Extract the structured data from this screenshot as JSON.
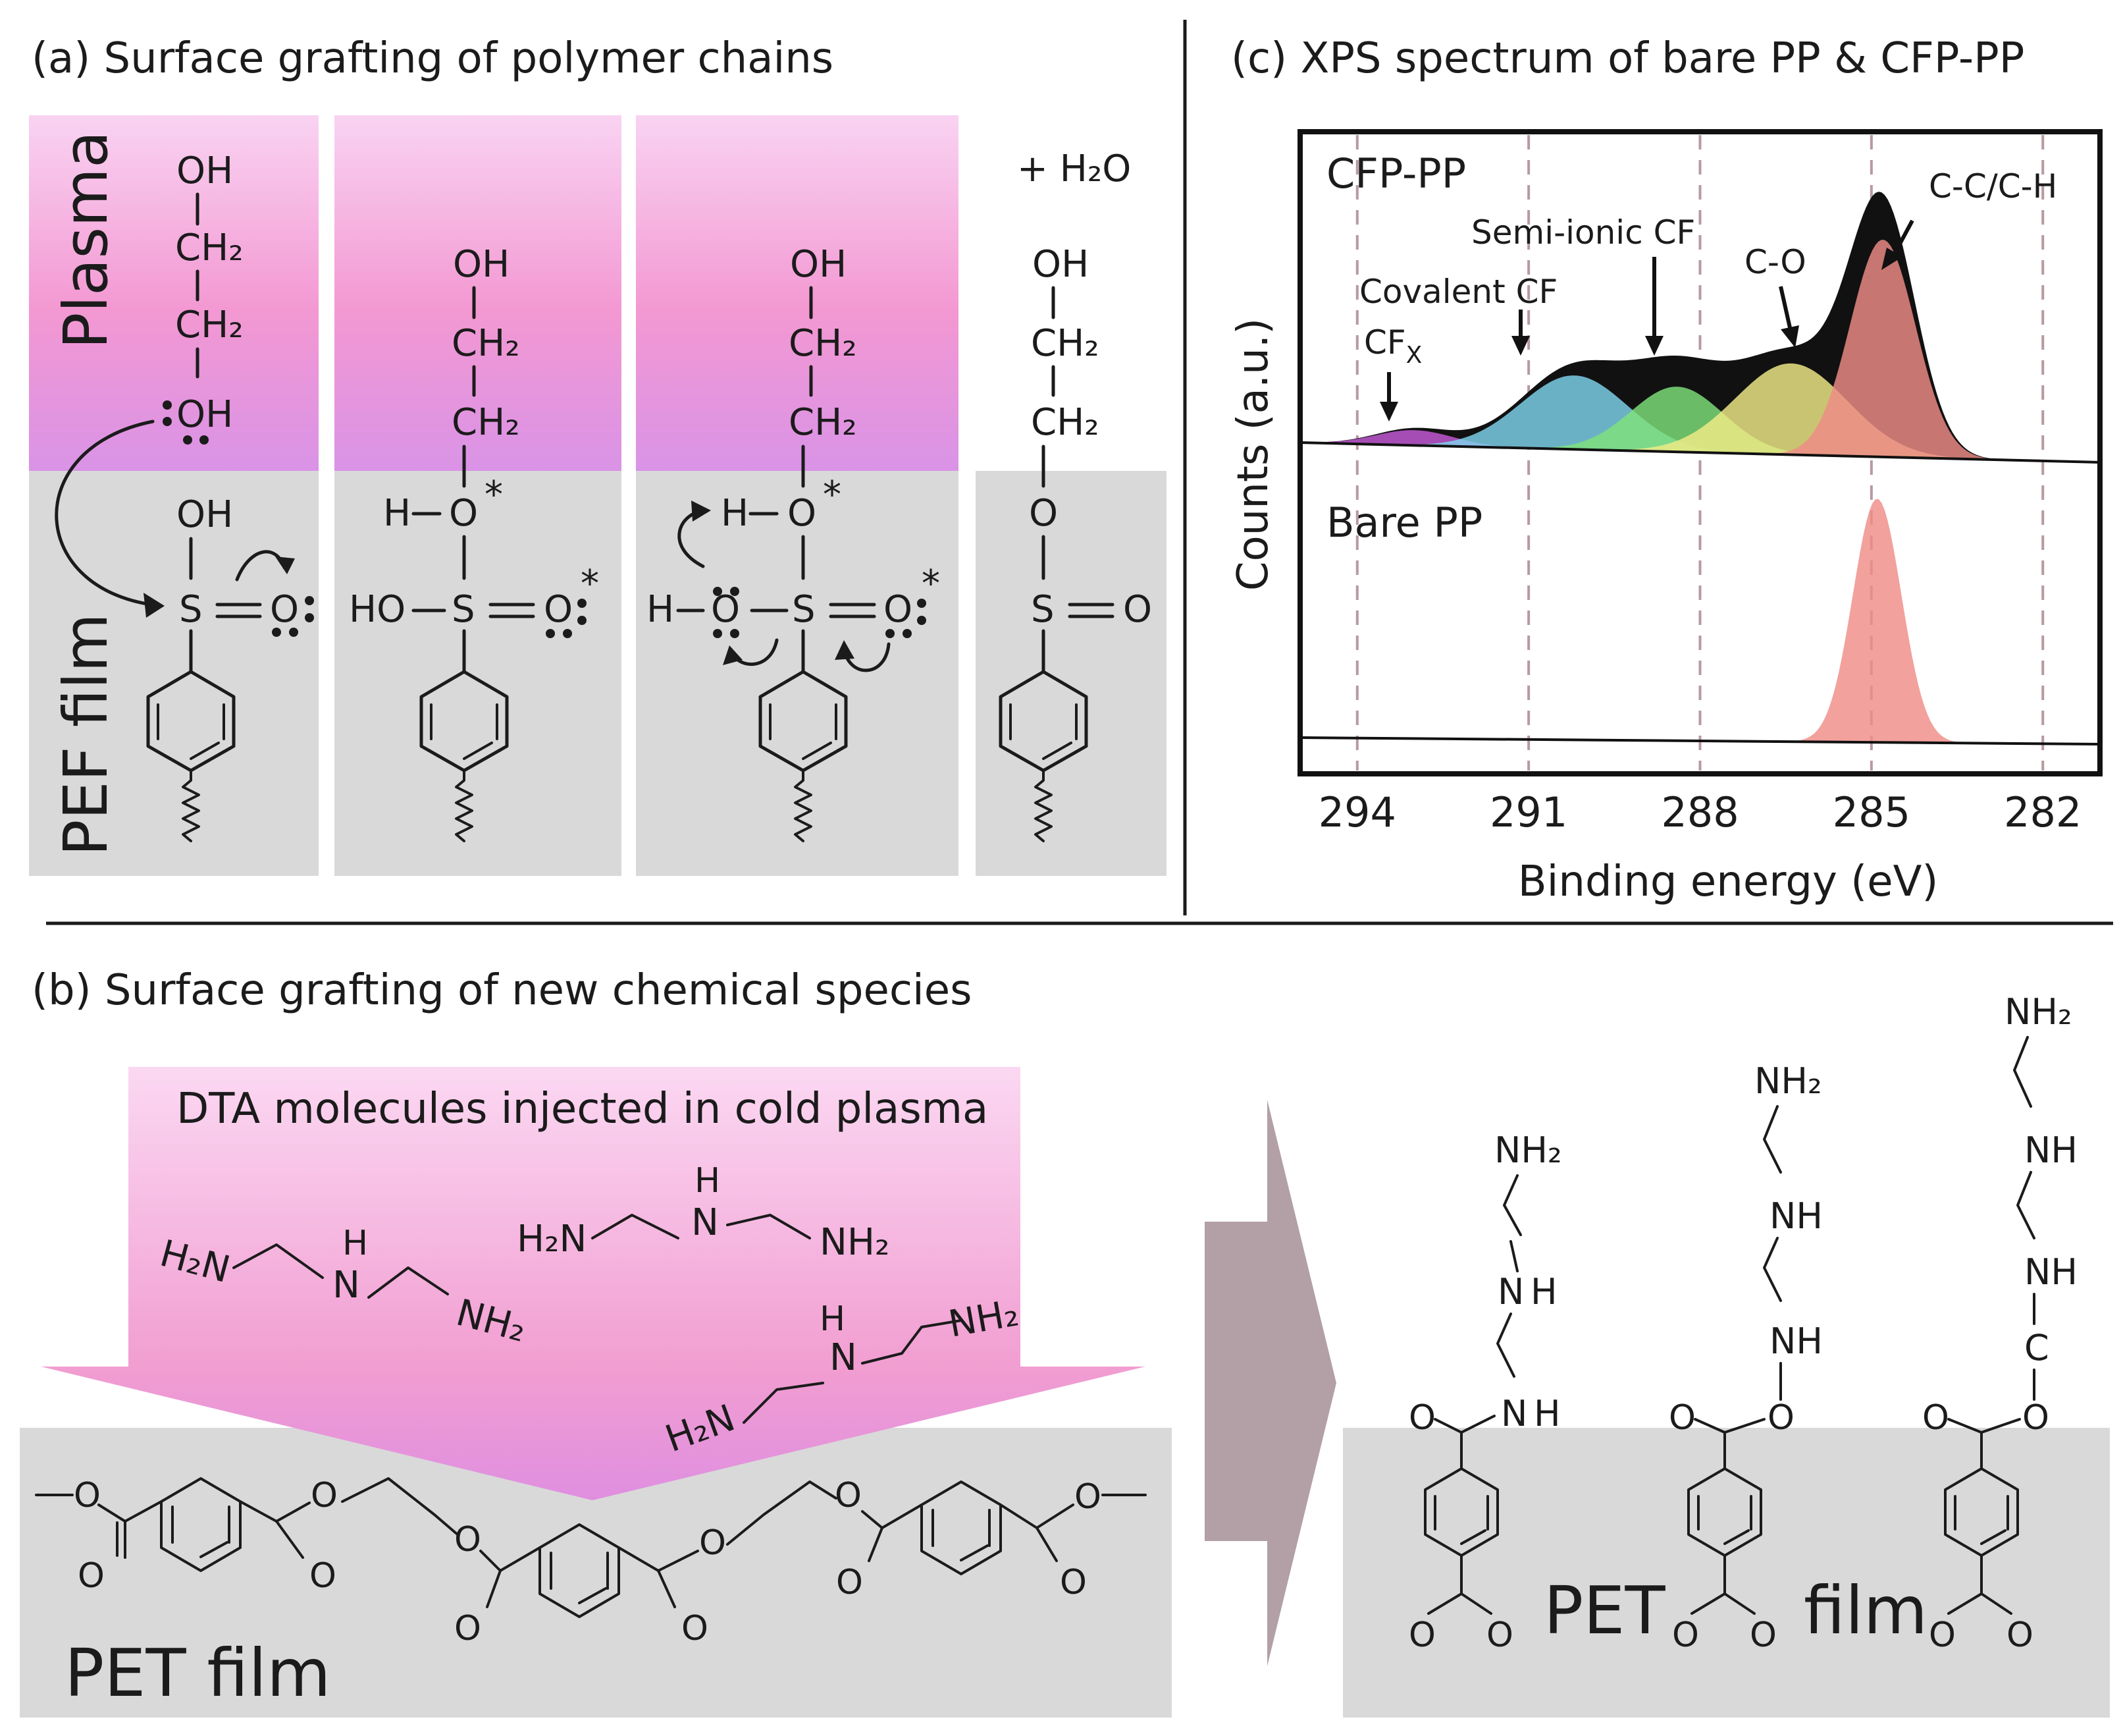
{
  "panel_a": {
    "title": "(a) Surface grafting of polymer chains",
    "plasma_label": "Plasma",
    "film_label": "PEF film",
    "water": "+ H₂O",
    "oh": "OH",
    "ch2": "CH₂",
    "o": "O",
    "s": "S",
    "h": "H",
    "ho": "HO",
    "star": "*"
  },
  "panel_b": {
    "title": "(b) Surface grafting of new chemical species",
    "dta_label": "DTA molecules injected in cold plasma",
    "h2n": "H₂N",
    "nh2": "NH₂",
    "nh": "NH",
    "n": "N",
    "h": "H",
    "c": "C",
    "o": "O",
    "pet_left": "PET film",
    "pet_right_1": "PET",
    "pet_right_2": "film"
  },
  "panel_c": {
    "title": "(c) XPS spectrum of  bare PP & CFP-PP",
    "colors": {
      "cfx": "#c65ad8",
      "covalent": "#7fd4ee",
      "semi_ionic": "#7fe27a",
      "c_o": "#f1ec86",
      "c_c": "#ef8c87",
      "envelope": "#111111"
    }
  },
  "chart_data": {
    "type": "area",
    "title": "(c) XPS spectrum of  bare PP & CFP-PP",
    "xlabel": "Binding energy (eV)",
    "ylabel": "Counts (a.u.)",
    "xlim": [
      295,
      281
    ],
    "x_reversed": true,
    "xticks": [
      294,
      291,
      288,
      285,
      282
    ],
    "grid_lines_x": [
      294,
      291,
      288,
      285,
      282
    ],
    "series": [
      {
        "name": "CFP-PP",
        "panel": "top",
        "components": [
          {
            "label": "CFx",
            "center": 293.0,
            "fwhm": 1.6,
            "height": 0.07
          },
          {
            "label": "Covalent CF",
            "center": 290.2,
            "fwhm": 2.2,
            "height": 0.34
          },
          {
            "label": "Semi-ionic CF",
            "center": 288.4,
            "fwhm": 1.9,
            "height": 0.3
          },
          {
            "label": "C-O",
            "center": 286.4,
            "fwhm": 2.3,
            "height": 0.42
          },
          {
            "label": "C-C/C-H",
            "center": 284.8,
            "fwhm": 1.35,
            "height": 1.0
          }
        ],
        "envelope_peak": {
          "x": 285.0,
          "y": 1.22
        }
      },
      {
        "name": "Bare PP",
        "panel": "bottom",
        "components": [
          {
            "label": "C-C/C-H",
            "center": 284.9,
            "fwhm": 1.0,
            "height": 1.0
          }
        ]
      }
    ],
    "annotations": [
      "CFP-PP",
      "Bare PP",
      "Covalent CF",
      "CFX",
      "Semi-ionic CF",
      "C-O",
      "C-C/C-H"
    ]
  }
}
